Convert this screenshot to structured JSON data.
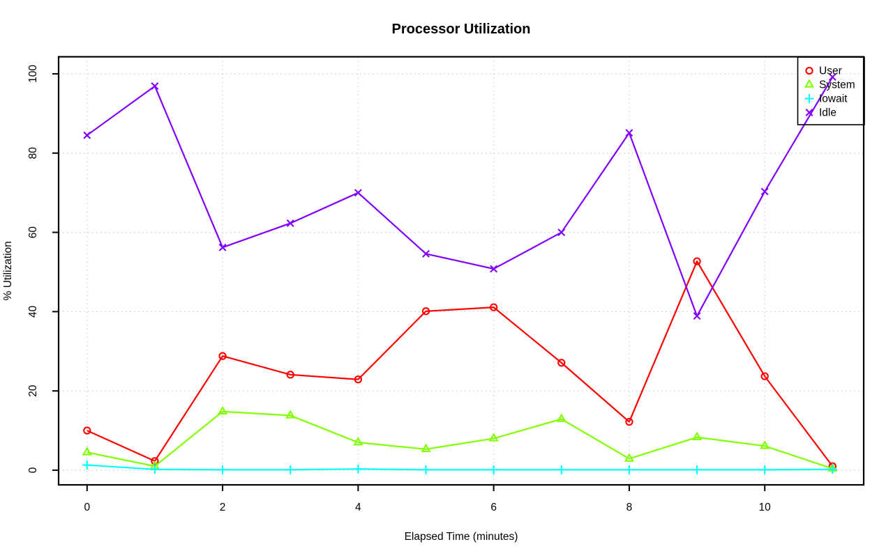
{
  "window": {
    "title": "Processor Utilization",
    "background": "#FFFFFF"
  },
  "chart_data": {
    "type": "line",
    "title": "Processor Utilization",
    "xlabel": "Elapsed Time (minutes)",
    "ylabel": "% Utilization",
    "x": [
      0,
      1,
      2,
      3,
      4,
      5,
      6,
      7,
      8,
      9,
      10,
      11
    ],
    "x_ticks": [
      0,
      2,
      4,
      6,
      8,
      10
    ],
    "y_ticks": [
      0,
      20,
      40,
      60,
      80,
      100
    ],
    "xlim": [
      -0.42,
      11.46
    ],
    "ylim": [
      -3.7,
      104.3
    ],
    "grid": true,
    "grid_color": "#D3D3D3",
    "axis_color": "#000000",
    "legend_position": "topright",
    "legend_entries": [
      "User",
      "System",
      "Iowait",
      "Idle"
    ],
    "series": [
      {
        "name": "User",
        "color": "#FF0000",
        "marker": "circle",
        "values": [
          10.0,
          2.3,
          28.8,
          24.1,
          22.9,
          40.1,
          41.1,
          27.1,
          12.2,
          52.7,
          23.7,
          1.0
        ]
      },
      {
        "name": "System",
        "color": "#80FF00",
        "marker": "triangle",
        "values": [
          4.5,
          1.0,
          14.8,
          13.8,
          7.0,
          5.3,
          8.0,
          12.9,
          2.9,
          8.3,
          6.1,
          0.4
        ]
      },
      {
        "name": "Iowait",
        "color": "#00FFFF",
        "marker": "plus",
        "values": [
          1.3,
          0.2,
          0.1,
          0.1,
          0.3,
          0.1,
          0.1,
          0.1,
          0.1,
          0.1,
          0.1,
          0.2
        ]
      },
      {
        "name": "Idle",
        "color": "#8000FF",
        "marker": "x",
        "values": [
          84.5,
          96.9,
          56.2,
          62.3,
          70.0,
          54.6,
          50.8,
          60.0,
          85.1,
          38.9,
          70.3,
          99.2
        ]
      }
    ]
  }
}
